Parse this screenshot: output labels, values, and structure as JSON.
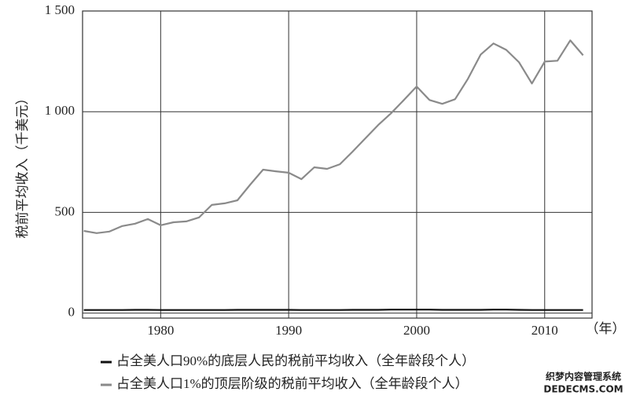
{
  "chart_data": {
    "type": "line",
    "y_label": "税前平均收入（千美元）",
    "x_unit": "（年）",
    "x": [
      1974,
      1975,
      1976,
      1977,
      1978,
      1979,
      1980,
      1981,
      1982,
      1983,
      1984,
      1985,
      1986,
      1987,
      1988,
      1989,
      1990,
      1991,
      1992,
      1993,
      1994,
      1995,
      1996,
      1997,
      1998,
      1999,
      2000,
      2001,
      2002,
      2003,
      2004,
      2005,
      2006,
      2007,
      2008,
      2009,
      2010,
      2011,
      2012,
      2013
    ],
    "series": [
      {
        "name": "占全美人口90%的底层人民的税前平均收入（全年龄段个人）",
        "color": "#111111",
        "values": [
          15,
          15,
          15,
          15,
          16,
          16,
          15,
          15,
          15,
          15,
          15,
          15,
          16,
          16,
          16,
          16,
          16,
          15,
          15,
          15,
          15,
          16,
          16,
          16,
          17,
          17,
          17,
          17,
          16,
          16,
          16,
          16,
          17,
          17,
          16,
          15,
          15,
          15,
          15,
          15
        ]
      },
      {
        "name": "占全美人口1%的顶层阶级的税前平均收入（全年龄段个人）",
        "color": "#8a8a8a",
        "values": [
          408,
          397,
          405,
          432,
          444,
          467,
          436,
          451,
          455,
          475,
          537,
          545,
          560,
          638,
          712,
          704,
          697,
          665,
          724,
          716,
          739,
          802,
          868,
          934,
          992,
          1058,
          1125,
          1058,
          1039,
          1062,
          1163,
          1284,
          1339,
          1307,
          1245,
          1140,
          1249,
          1253,
          1354,
          1280
        ]
      }
    ],
    "xlim": [
      1973.9,
      2013.7
    ],
    "xticks": [
      1980,
      1990,
      2000,
      2010
    ],
    "ylim": [
      -25,
      1500
    ],
    "yticks": [
      0,
      500,
      {
        "value": 1000,
        "label": "1 000"
      },
      {
        "value": 1500,
        "label": "1 500"
      }
    ],
    "grid": true,
    "legend": "bottom"
  },
  "watermark": [
    "织梦内容管理系统",
    "DEDECMS.COM"
  ]
}
